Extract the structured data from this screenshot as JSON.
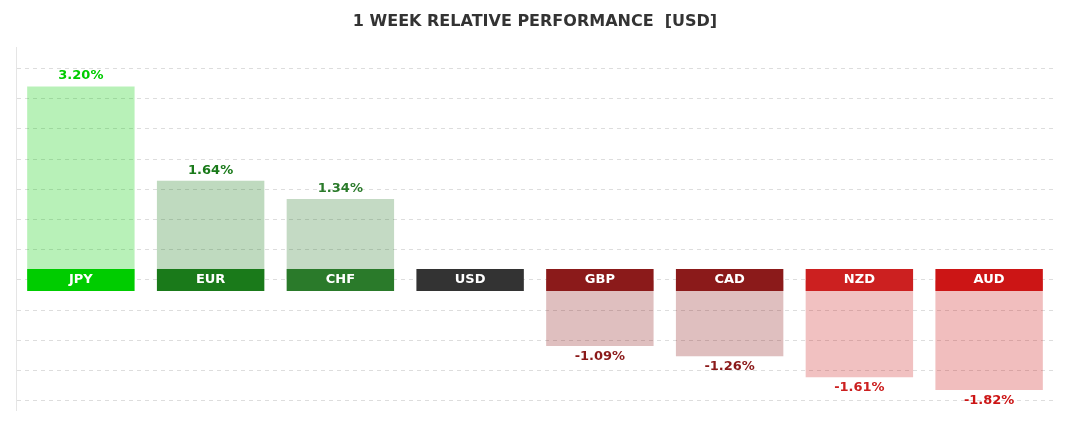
{
  "chart_data": {
    "type": "bar",
    "title": "1 WEEK RELATIVE PERFORMANCE  [USD]",
    "categories": [
      "JPY",
      "EUR",
      "CHF",
      "USD",
      "GBP",
      "CAD",
      "NZD",
      "AUD"
    ],
    "values": [
      3.2,
      1.64,
      1.34,
      0.0,
      -1.09,
      -1.26,
      -1.61,
      -1.82
    ],
    "value_labels": [
      "3.20%",
      "1.64%",
      "1.34%",
      null,
      "-1.09%",
      "-1.26%",
      "-1.61%",
      "-1.82%"
    ],
    "colors": [
      "#00cc00",
      "#1a7a1a",
      "#2a7a2a",
      "#333333",
      "#8b1a1a",
      "#8b1a1a",
      "#cc2020",
      "#cc1515"
    ],
    "ylim": [
      -2.15,
      3.85
    ],
    "yticks": [
      -2.0,
      -1.5,
      -1.0,
      -0.5,
      0.0,
      0.5,
      1.0,
      1.5,
      2.0,
      2.5,
      3.0,
      3.5
    ],
    "grid": true,
    "data_labels": true,
    "tick_labels": false
  }
}
